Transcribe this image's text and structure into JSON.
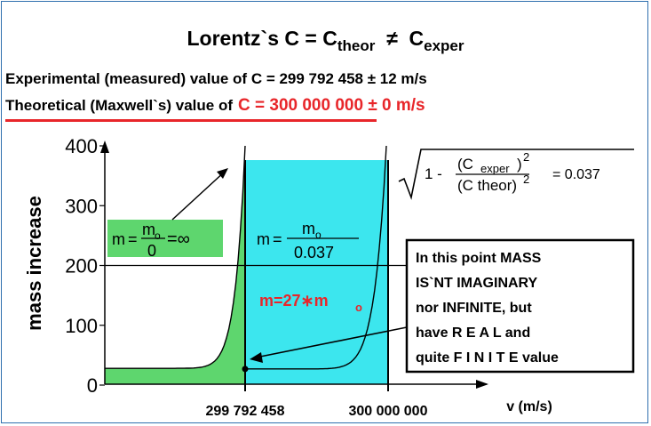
{
  "header": {
    "title_prefix": "Lorentz`s  C = C",
    "title_sub1": "theor",
    "title_neq": "≠",
    "title_c2": "C",
    "title_sub2": "exper",
    "experimental_line": "Experimental (measured) value of C = 299 792 458 ± 12 m/s",
    "theoretical_label": "Theoretical  (Maxwell`s)  value  of",
    "theoretical_value": "C = 300 000 000 ± 0  m/s"
  },
  "chart_data": {
    "type": "line",
    "title": "",
    "ylabel": "mass increase",
    "xlabel": "v (m/s)",
    "ylim": [
      0,
      400
    ],
    "yticks": [
      0,
      100,
      200,
      300,
      400
    ],
    "ytick_labels": [
      "0",
      "100",
      "200",
      "300",
      "400"
    ],
    "xticks": [
      299792458,
      300000000
    ],
    "xtick_labels": [
      "299 792 458",
      "300 000 000"
    ],
    "series": [
      {
        "name": "",
        "color": "#5ed66e",
        "x": [
          "start",
          299792458
        ],
        "y": [
          28,
          400
        ]
      },
      {
        "name": "",
        "color": "#3ce6ee",
        "x": [
          299792458,
          300000000
        ],
        "y": [
          27,
          400
        ]
      }
    ],
    "reference_line_y": 200
  },
  "annotations": {
    "m_symbol": "m",
    "eq": "=",
    "m0_top": "m",
    "m0_sub": "o",
    "zero": "0",
    "infinity": "=∞",
    "denom": "0.037",
    "m27": "m=27∗m",
    "m27_sub": "o",
    "sqrt_one": "1 -",
    "cexper": "(C",
    "cexper_sub": "exper",
    "cexper_close": ")",
    "exp2": "2",
    "ctheor": "(C theor)",
    "eq_result": "= 0.037",
    "box_lines": [
      "In this point MASS",
      "IS`NT    IMAGINARY",
      "nor INFINITE, but",
      "have  R E A L  and",
      "quite  F I N I T E  value"
    ]
  },
  "colors": {
    "green": "#5ed66e",
    "cyan": "#3ce6ee",
    "red": "#e8262a",
    "frame": "#2f6fae"
  }
}
